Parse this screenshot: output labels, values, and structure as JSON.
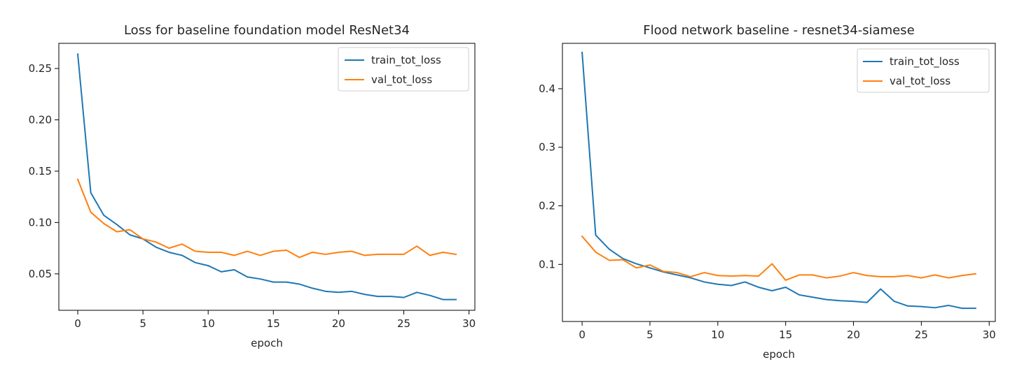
{
  "chart_data": [
    {
      "type": "line",
      "title": "Loss for baseline foundation model ResNet34",
      "xlabel": "epoch",
      "ylabel": "",
      "xlim": [
        -1.45,
        30.45
      ],
      "ylim": [
        0.0145,
        0.2745
      ],
      "xticks": [
        0,
        5,
        10,
        15,
        20,
        25,
        30
      ],
      "yticks": [
        0.05,
        0.1,
        0.15,
        0.2,
        0.25
      ],
      "ytick_labels": [
        "0.05",
        "0.10",
        "0.15",
        "0.20",
        "0.25"
      ],
      "grid": false,
      "legend": "top-right",
      "x": [
        0,
        1,
        2,
        3,
        4,
        5,
        6,
        7,
        8,
        9,
        10,
        11,
        12,
        13,
        14,
        15,
        16,
        17,
        18,
        19,
        20,
        21,
        22,
        23,
        24,
        25,
        26,
        27,
        28,
        29
      ],
      "series": [
        {
          "name": "train_tot_loss",
          "color": "#1f77b4",
          "values": [
            0.264,
            0.129,
            0.107,
            0.098,
            0.088,
            0.084,
            0.076,
            0.071,
            0.068,
            0.061,
            0.058,
            0.052,
            0.054,
            0.047,
            0.045,
            0.042,
            0.042,
            0.04,
            0.036,
            0.033,
            0.032,
            0.033,
            0.03,
            0.028,
            0.028,
            0.027,
            0.032,
            0.029,
            0.025,
            0.025
          ]
        },
        {
          "name": "val_tot_loss",
          "color": "#ff7f0e",
          "values": [
            0.142,
            0.11,
            0.099,
            0.091,
            0.093,
            0.084,
            0.081,
            0.075,
            0.079,
            0.072,
            0.071,
            0.071,
            0.068,
            0.072,
            0.068,
            0.072,
            0.073,
            0.066,
            0.071,
            0.069,
            0.071,
            0.072,
            0.068,
            0.069,
            0.069,
            0.069,
            0.077,
            0.068,
            0.071,
            0.069
          ]
        }
      ]
    },
    {
      "type": "line",
      "title": "Flood network baseline - resnet34-siamese",
      "xlabel": "epoch",
      "ylabel": "",
      "xlim": [
        -1.45,
        30.45
      ],
      "ylim": [
        0.0025,
        0.4775
      ],
      "xticks": [
        0,
        5,
        10,
        15,
        20,
        25,
        30
      ],
      "yticks": [
        0.1,
        0.2,
        0.3,
        0.4
      ],
      "ytick_labels": [
        "0.1",
        "0.2",
        "0.3",
        "0.4"
      ],
      "grid": false,
      "legend": "top-right",
      "x": [
        0,
        1,
        2,
        3,
        4,
        5,
        6,
        7,
        8,
        9,
        10,
        11,
        12,
        13,
        14,
        15,
        16,
        17,
        18,
        19,
        20,
        21,
        22,
        23,
        24,
        25,
        26,
        27,
        28,
        29
      ],
      "series": [
        {
          "name": "train_tot_loss",
          "color": "#1f77b4",
          "values": [
            0.462,
            0.15,
            0.126,
            0.11,
            0.101,
            0.094,
            0.087,
            0.082,
            0.077,
            0.07,
            0.066,
            0.064,
            0.07,
            0.061,
            0.055,
            0.061,
            0.048,
            0.044,
            0.04,
            0.038,
            0.037,
            0.035,
            0.058,
            0.037,
            0.029,
            0.028,
            0.026,
            0.03,
            0.025,
            0.025
          ]
        },
        {
          "name": "val_tot_loss",
          "color": "#ff7f0e",
          "values": [
            0.148,
            0.121,
            0.107,
            0.108,
            0.094,
            0.099,
            0.088,
            0.086,
            0.079,
            0.086,
            0.081,
            0.08,
            0.081,
            0.08,
            0.101,
            0.073,
            0.082,
            0.082,
            0.077,
            0.08,
            0.086,
            0.081,
            0.079,
            0.079,
            0.081,
            0.077,
            0.082,
            0.077,
            0.081,
            0.084
          ]
        }
      ]
    }
  ]
}
